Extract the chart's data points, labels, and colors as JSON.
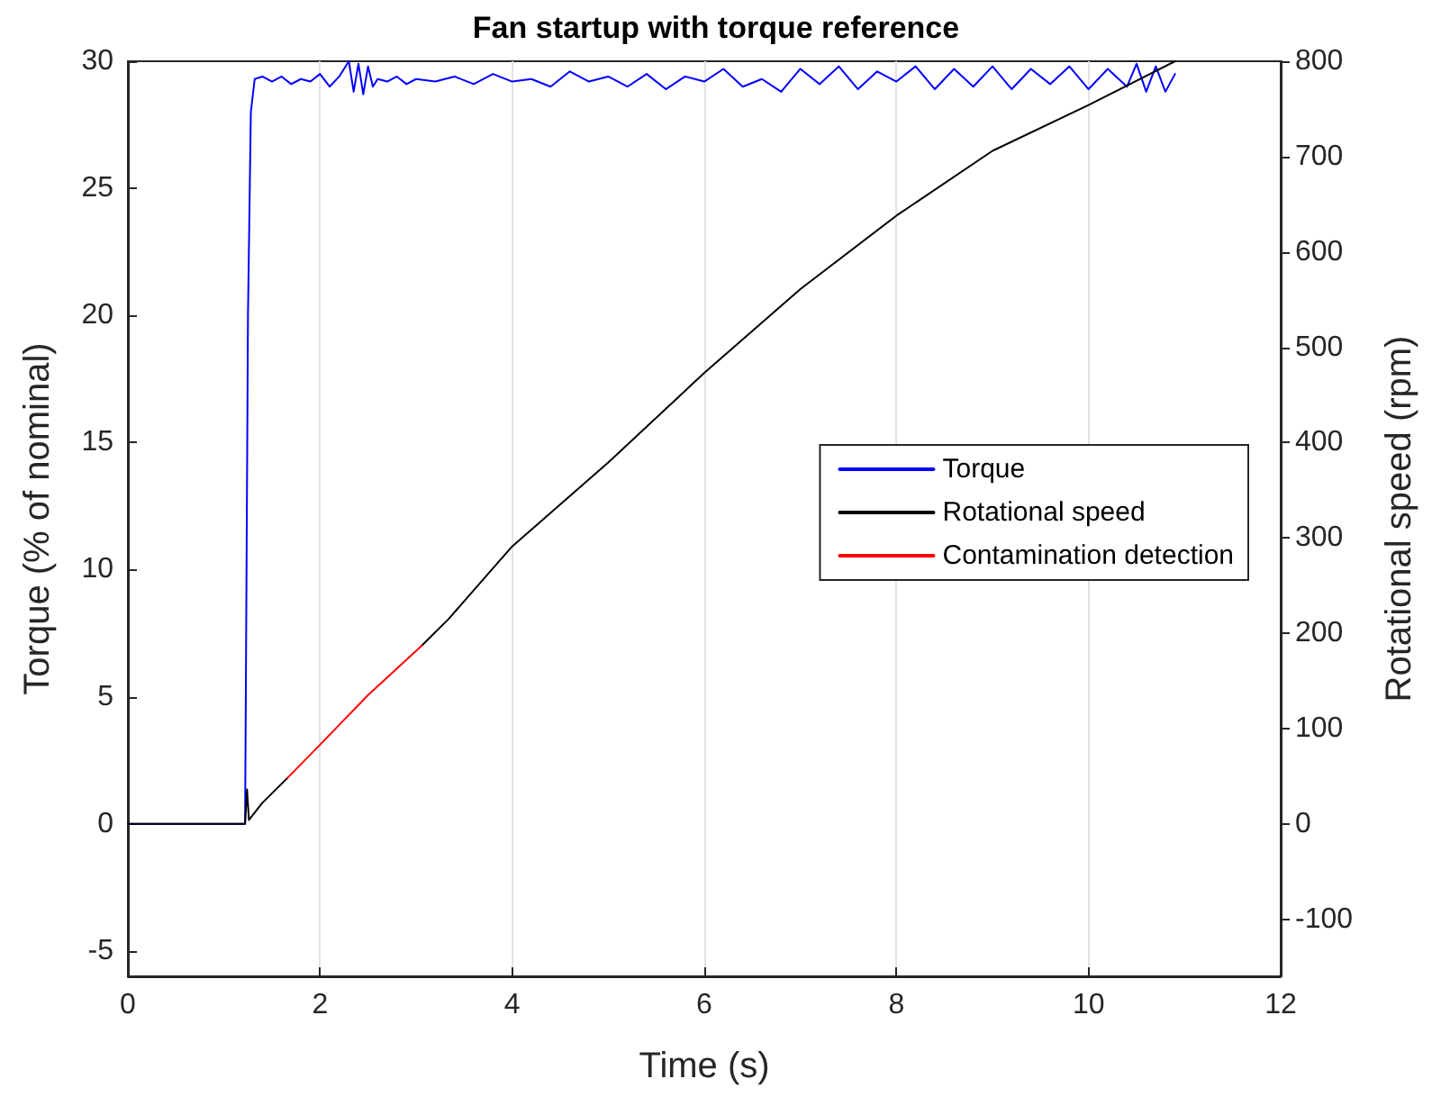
{
  "chart_data": {
    "type": "line",
    "title": "Fan startup with torque reference",
    "xlabel": "Time (s)",
    "ylabel": "Torque (% of nominal)",
    "y2label": "Rotational speed (rpm)",
    "xlim": [
      0,
      12
    ],
    "xticks": [
      0,
      2,
      4,
      6,
      8,
      10,
      12
    ],
    "ylim": [
      -6,
      30
    ],
    "yticks": [
      -5,
      0,
      5,
      10,
      15,
      20,
      25,
      30
    ],
    "y2lim": [
      -160,
      800
    ],
    "y2ticks": [
      -100,
      0,
      100,
      200,
      300,
      400,
      500,
      600,
      700,
      800
    ],
    "grid": "x",
    "legend": "right",
    "line_style": "solid",
    "marker": "none",
    "series": [
      {
        "name": "Torque",
        "color": "#0000ff",
        "x": [
          0,
          1.22,
          1.25,
          1.28,
          1.32,
          1.4,
          1.5,
          1.6,
          1.7,
          1.8,
          1.9,
          2.0,
          2.1,
          2.2,
          2.3,
          2.35,
          2.4,
          2.45,
          2.5,
          2.55,
          2.6,
          2.7,
          2.8,
          2.9,
          3.0,
          3.2,
          3.4,
          3.6,
          3.8,
          4.0,
          4.2,
          4.4,
          4.6,
          4.8,
          5.0,
          5.2,
          5.4,
          5.6,
          5.8,
          6.0,
          6.2,
          6.4,
          6.6,
          6.8,
          7.0,
          7.2,
          7.4,
          7.6,
          7.8,
          8.0,
          8.2,
          8.4,
          8.6,
          8.8,
          9.0,
          9.2,
          9.4,
          9.6,
          9.8,
          10.0,
          10.2,
          10.4,
          10.5,
          10.6,
          10.7,
          10.8,
          10.9
        ],
        "values": [
          0,
          0,
          20,
          28,
          29.3,
          29.4,
          29.2,
          29.4,
          29.1,
          29.3,
          29.2,
          29.5,
          29.0,
          29.4,
          30.0,
          28.8,
          29.9,
          28.7,
          29.8,
          29.0,
          29.3,
          29.2,
          29.4,
          29.1,
          29.3,
          29.2,
          29.4,
          29.1,
          29.5,
          29.2,
          29.3,
          29.0,
          29.6,
          29.2,
          29.4,
          29.0,
          29.5,
          28.9,
          29.4,
          29.2,
          29.7,
          29.0,
          29.3,
          28.8,
          29.7,
          29.1,
          29.8,
          28.9,
          29.6,
          29.2,
          29.8,
          28.9,
          29.7,
          29.0,
          29.8,
          28.9,
          29.7,
          29.1,
          29.8,
          28.9,
          29.7,
          29.0,
          29.9,
          28.8,
          29.8,
          28.8,
          29.5
        ]
      },
      {
        "name": "Rotational speed",
        "color": "#000000",
        "axis": "y2",
        "x": [
          0,
          1.22,
          1.24,
          1.26,
          1.4,
          1.66,
          2.0,
          2.5,
          3.06,
          3.34,
          3.53,
          4.0,
          5.0,
          6.0,
          7.0,
          8.0,
          9.0,
          10.0,
          10.9
        ],
        "values": [
          0,
          0,
          36,
          4,
          22,
          48,
          null,
          null,
          187,
          215,
          237,
          291,
          379,
          473,
          561,
          638,
          706,
          754,
          800
        ]
      },
      {
        "name": "Contamination detection",
        "color": "#ff0000",
        "axis": "y2",
        "x": [
          1.66,
          2.0,
          2.5,
          3.06
        ],
        "values": [
          48,
          83,
          135,
          187
        ]
      }
    ]
  }
}
